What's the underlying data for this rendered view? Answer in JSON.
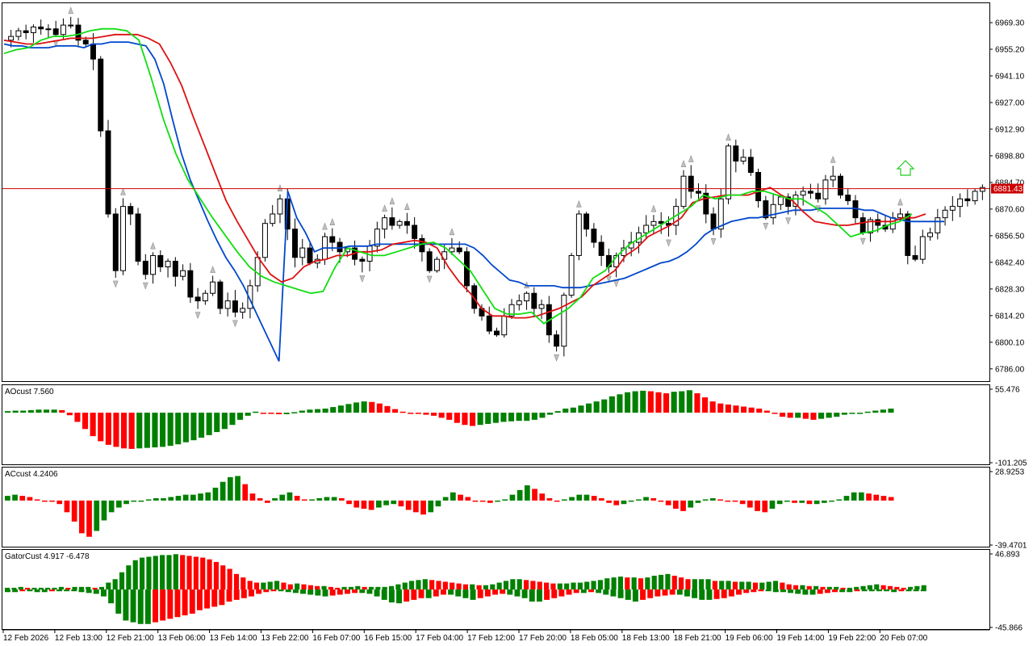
{
  "chart_data": [
    {
      "type": "candlestick",
      "title": "",
      "ylim": [
        6779.5,
        6980.0
      ],
      "y_ticks": [
        "6969.30",
        "6955.20",
        "6941.10",
        "6927.00",
        "6912.90",
        "6898.80",
        "6884.70",
        "6870.60",
        "6856.50",
        "6842.40",
        "6828.30",
        "6814.20",
        "6800.10",
        "6786.00"
      ],
      "current_price": "6881.43",
      "current_price_value": 6881.43,
      "x_labels": [
        "12 Feb 2026",
        "12 Feb 13:00",
        "12 Feb 21:00",
        "13 Feb 06:00",
        "13 Feb 14:00",
        "13 Feb 22:00",
        "16 Feb 07:00",
        "16 Feb 15:00",
        "17 Feb 04:00",
        "17 Feb 12:00",
        "17 Feb 20:00",
        "18 Feb 05:00",
        "18 Feb 13:00",
        "18 Feb 21:00",
        "19 Feb 06:00",
        "19 Feb 14:00",
        "19 Feb 22:00",
        "20 Feb 07:00"
      ],
      "close_path": [
        6962,
        6965,
        6964,
        6967,
        6966,
        6966,
        6963,
        6968,
        6968,
        6960,
        6958,
        6950,
        6912,
        6868,
        6838,
        6872,
        6868,
        6843,
        6836,
        6846,
        6840,
        6843,
        6835,
        6838,
        6824,
        6822,
        6826,
        6832,
        6818,
        6822,
        6816,
        6818,
        6830,
        6845,
        6863,
        6868,
        6876,
        6860,
        6845,
        6850,
        6842,
        6844,
        6856,
        6853,
        6848,
        6850,
        6844,
        6843,
        6851,
        6860,
        6866,
        6862,
        6864,
        6862,
        6855,
        6848,
        6838,
        6844,
        6848,
        6850,
        6848,
        6830,
        6818,
        6814,
        6806,
        6804,
        6814,
        6820,
        6822,
        6826,
        6818,
        6820,
        6804,
        6798,
        6825,
        6846,
        6868,
        6860,
        6853,
        6846,
        6840,
        6846,
        6850,
        6853,
        6858,
        6862,
        6864,
        6863,
        6862,
        6872,
        6888,
        6880,
        6879,
        6868,
        6860,
        6876,
        6904,
        6896,
        6898,
        6890,
        6875,
        6866,
        6873,
        6877,
        6872,
        6878,
        6880,
        6879,
        6876,
        6886,
        6888,
        6878,
        6875,
        6866,
        6858,
        6865,
        6862,
        6860,
        6866,
        6868,
        6846,
        6844,
        6856,
        6858,
        6866,
        6870,
        6872,
        6876,
        6875,
        6880,
        6882
      ],
      "series": [
        {
          "name": "",
          "color": "#0047cc",
          "values": [
            6958,
            6957,
            6957,
            6956,
            6956,
            6956,
            6957,
            6957,
            6957,
            6956,
            6958,
            6958,
            6959,
            6959,
            6959,
            6958,
            6957,
            6950,
            6937,
            6918,
            6900,
            6886,
            6875,
            6864,
            6854,
            6845,
            6838,
            6830,
            6820,
            6810,
            6800,
            6790,
            6880,
            6866,
            6858,
            6848,
            6850,
            6850,
            6850,
            6851,
            6851,
            6851,
            6852,
            6852,
            6852,
            6852,
            6852,
            6852,
            6852,
            6852,
            6852,
            6852,
            6852,
            6850,
            6846,
            6841,
            6837,
            6833,
            6832,
            6830,
            6830,
            6830,
            6830,
            6829,
            6829,
            6829,
            6830,
            6831,
            6832,
            6833,
            6834,
            6836,
            6838,
            6840,
            6842,
            6843,
            6845,
            6848,
            6852,
            6857,
            6860,
            6862,
            6864,
            6865,
            6866,
            6866,
            6867,
            6868,
            6869,
            6870,
            6870,
            6870,
            6871,
            6871,
            6871,
            6871,
            6871,
            6870,
            6870,
            6868,
            6866,
            6865,
            6864,
            6864,
            6864,
            6864,
            6864
          ]
        },
        {
          "name": "",
          "color": "#dd1111",
          "values": [
            6960,
            6959,
            6958,
            6958,
            6959,
            6960,
            6961,
            6961,
            6961,
            6962,
            6963,
            6963,
            6963,
            6961,
            6958,
            6948,
            6936,
            6920,
            6905,
            6890,
            6875,
            6864,
            6854,
            6844,
            6836,
            6832,
            6834,
            6840,
            6843,
            6844,
            6846,
            6846,
            6848,
            6848,
            6849,
            6852,
            6853,
            6854,
            6853,
            6850,
            6840,
            6832,
            6826,
            6818,
            6814,
            6814,
            6813,
            6813,
            6814,
            6816,
            6818,
            6821,
            6824,
            6830,
            6834,
            6838,
            6846,
            6850,
            6856,
            6859,
            6862,
            6866,
            6874,
            6876,
            6877,
            6878,
            6878,
            6878,
            6880,
            6882,
            6878,
            6875,
            6869,
            6864,
            6863,
            6862,
            6862,
            6863,
            6864,
            6864,
            6864,
            6866,
            6866,
            6868
          ]
        },
        {
          "name": "",
          "color": "#11dd11",
          "values": [
            6953,
            6955,
            6956,
            6960,
            6962,
            6962,
            6963,
            6965,
            6966,
            6966,
            6965,
            6960,
            6940,
            6918,
            6900,
            6886,
            6876,
            6866,
            6857,
            6848,
            6840,
            6835,
            6832,
            6830,
            6828,
            6826,
            6827,
            6840,
            6850,
            6848,
            6846,
            6846,
            6848,
            6850,
            6852,
            6853,
            6850,
            6844,
            6838,
            6828,
            6818,
            6815,
            6815,
            6816,
            6810,
            6814,
            6818,
            6824,
            6834,
            6838,
            6846,
            6852,
            6856,
            6860,
            6864,
            6868,
            6872,
            6878,
            6876,
            6878,
            6878,
            6880,
            6880,
            6878,
            6876,
            6876,
            6872,
            6868,
            6862,
            6856,
            6858,
            6859,
            6862,
            6864,
            6868
          ]
        }
      ]
    },
    {
      "type": "bar",
      "name": "AOcust",
      "label": "AOcust 7.560",
      "ylim": [
        -101.205,
        55.476
      ],
      "y_ticks": [
        "55.476",
        "-101.205"
      ],
      "colors": {
        "up": "#008000",
        "down": "#ff0000"
      },
      "values": [
        3,
        4,
        4,
        5,
        6,
        6,
        6,
        5,
        -5,
        -18,
        -32,
        -46,
        -56,
        -63,
        -67,
        -70,
        -71,
        -70,
        -69,
        -68,
        -67,
        -65,
        -62,
        -58,
        -54,
        -49,
        -44,
        -38,
        -32,
        -24,
        -14,
        -6,
        2,
        -1,
        -2,
        -3,
        -3,
        1,
        4,
        6,
        7,
        8,
        11,
        14,
        17,
        20,
        22,
        21,
        18,
        13,
        7,
        2,
        0,
        -2,
        -4,
        -6,
        -10,
        -14,
        -20,
        -24,
        -26,
        -24,
        -22,
        -20,
        -18,
        -17,
        -16,
        -16,
        -14,
        -10,
        -4,
        3,
        8,
        10,
        14,
        18,
        22,
        26,
        32,
        36,
        40,
        42,
        43,
        42,
        40,
        38,
        41,
        42,
        44,
        38,
        30,
        22,
        18,
        16,
        14,
        12,
        10,
        8,
        4,
        -2,
        -8,
        -10,
        -10,
        -12,
        -14,
        -12,
        -10,
        -8,
        -4,
        -2,
        0,
        2,
        4,
        6,
        8
      ]
    },
    {
      "type": "bar",
      "name": "ACcust",
      "label": "ACcust 4.2406",
      "ylim": [
        -39.4701,
        28.9253
      ],
      "y_ticks": [
        "28.9253",
        "-39.4701"
      ],
      "colors": {
        "up": "#008000",
        "down": "#ff0000"
      },
      "values": [
        4,
        5,
        4,
        3,
        1,
        0,
        -1,
        -3,
        -10,
        -18,
        -28,
        -31,
        -26,
        -17,
        -10,
        -6,
        -3,
        -1,
        0,
        1,
        2,
        2,
        3,
        4,
        5,
        5,
        6,
        7,
        11,
        16,
        20,
        21,
        14,
        6,
        2,
        -2,
        2,
        5,
        7,
        4,
        1,
        1,
        2,
        3,
        3,
        2,
        -3,
        -6,
        -7,
        -8,
        -6,
        -4,
        -3,
        -5,
        -8,
        -10,
        -12,
        -10,
        -5,
        3,
        7,
        5,
        3,
        0,
        -1,
        -2,
        -1,
        1,
        5,
        9,
        13,
        10,
        6,
        2,
        -1,
        1,
        3,
        5,
        5,
        4,
        2,
        -2,
        -4,
        -3,
        -1,
        1,
        3,
        2,
        0,
        -4,
        -7,
        -9,
        -6,
        -2,
        1,
        2,
        1,
        0,
        -1,
        -3,
        -6,
        -9,
        -10,
        -7,
        -3,
        -1,
        -2,
        -2,
        -3,
        -3,
        -2,
        -1,
        1,
        4,
        7,
        7,
        6,
        5,
        4,
        3
      ]
    },
    {
      "type": "bar",
      "name": "GatorCust",
      "label": "GatorCust 4.917 -6.478",
      "ylim": [
        -45.866,
        46.893
      ],
      "y_ticks": [
        "46.893",
        "-45.866"
      ],
      "colors": {
        "up": "#008000",
        "down": "#ff0000"
      },
      "upper_values": [
        2,
        2,
        3,
        2,
        2,
        2,
        2,
        2,
        3,
        2,
        3,
        3,
        3,
        2,
        3,
        8,
        12,
        20,
        28,
        34,
        37,
        38,
        39,
        40,
        40,
        41,
        40,
        39,
        38,
        37,
        35,
        32,
        28,
        24,
        18,
        14,
        10,
        8,
        8,
        9,
        10,
        8,
        6,
        7,
        6,
        5,
        4,
        4,
        3,
        2,
        3,
        3,
        4,
        3,
        3,
        3,
        3,
        4,
        6,
        8,
        10,
        11,
        12,
        11,
        10,
        9,
        8,
        7,
        6,
        6,
        5,
        5,
        6,
        8,
        10,
        12,
        12,
        11,
        10,
        9,
        8,
        7,
        7,
        7,
        8,
        8,
        9,
        10,
        11,
        13,
        14,
        15,
        14,
        14,
        13,
        14,
        16,
        17,
        18,
        16,
        14,
        12,
        12,
        12,
        12,
        10,
        10,
        10,
        9,
        9,
        9,
        8,
        8,
        9,
        10,
        8,
        6,
        5,
        5,
        4,
        4,
        3,
        3,
        3,
        2,
        2,
        3,
        4,
        5,
        6,
        5,
        4,
        3,
        2,
        3,
        4,
        5
      ],
      "lower_values": [
        -3,
        -3,
        -2,
        -2,
        -3,
        -3,
        -2,
        -2,
        -2,
        -2,
        -3,
        -4,
        -5,
        -8,
        -16,
        -28,
        -36,
        -38,
        -40,
        -40,
        -38,
        -36,
        -34,
        -32,
        -30,
        -28,
        -24,
        -22,
        -20,
        -18,
        -14,
        -12,
        -10,
        -8,
        -5,
        -3,
        -2,
        -2,
        -3,
        -4,
        -5,
        -6,
        -7,
        -8,
        -7,
        -6,
        -5,
        -4,
        -4,
        -5,
        -8,
        -12,
        -15,
        -16,
        -14,
        -12,
        -10,
        -10,
        -8,
        -6,
        -6,
        -8,
        -10,
        -12,
        -10,
        -8,
        -6,
        -5,
        -6,
        -8,
        -10,
        -14,
        -14,
        -12,
        -10,
        -8,
        -6,
        -4,
        -4,
        -3,
        -4,
        -6,
        -8,
        -10,
        -12,
        -14,
        -12,
        -10,
        -8,
        -7,
        -6,
        -6,
        -8,
        -10,
        -12,
        -12,
        -11,
        -10,
        -8,
        -6,
        -4,
        -3,
        -2,
        -2,
        -3,
        -3,
        -4,
        -5,
        -6,
        -6,
        -5,
        -4,
        -3,
        -3,
        -3,
        -2,
        -2,
        -2,
        -2,
        -2,
        -3,
        -2,
        -2,
        -2,
        -2
      ]
    }
  ]
}
